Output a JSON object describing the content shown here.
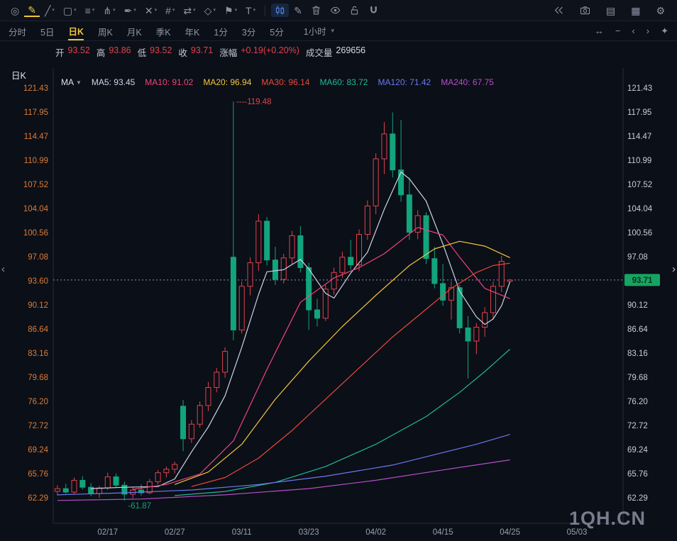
{
  "toolbar": {
    "left_tools": [
      {
        "name": "app-logo",
        "glyph": "◎"
      },
      {
        "name": "draw-pencil",
        "glyph": "✎",
        "active": "active-yellow"
      },
      {
        "name": "trend-line",
        "glyph": "╱",
        "caret": true
      },
      {
        "name": "shape-rect",
        "glyph": "▢",
        "caret": true
      },
      {
        "name": "horizontal-lines",
        "glyph": "≡",
        "caret": true
      },
      {
        "name": "pitchfork",
        "glyph": "⋔",
        "caret": true
      },
      {
        "name": "pen-tool",
        "glyph": "✒",
        "caret": true
      },
      {
        "name": "cross-line",
        "glyph": "✕",
        "caret": true
      },
      {
        "name": "gann-grid",
        "glyph": "#",
        "caret": true
      },
      {
        "name": "measure",
        "glyph": "⇄",
        "caret": true
      },
      {
        "name": "brush",
        "glyph": "◇",
        "caret": true
      },
      {
        "name": "flag-mark",
        "glyph": "⚑",
        "caret": true
      },
      {
        "name": "text-tool",
        "glyph": "T",
        "caret": true
      }
    ],
    "mid_tools": [
      {
        "name": "indicator-chart",
        "icon": "candles",
        "active": "active-blue"
      },
      {
        "name": "edit-drawing",
        "glyph": "✎"
      },
      {
        "name": "delete-drawing",
        "icon": "trash"
      },
      {
        "name": "visibility",
        "icon": "eye"
      },
      {
        "name": "unlock",
        "icon": "unlock"
      },
      {
        "name": "magnet-snap",
        "icon": "magnet"
      }
    ],
    "right_tools": [
      {
        "name": "replay-rewind",
        "icon": "rewind"
      },
      {
        "name": "screenshot-camera",
        "icon": "camera"
      },
      {
        "name": "layout-list",
        "glyph": "▤"
      },
      {
        "name": "layout-grid",
        "glyph": "▦"
      },
      {
        "name": "toolbar-settings",
        "glyph": "⚙"
      }
    ]
  },
  "timeframe_bar": {
    "tabs": [
      {
        "label": "分时"
      },
      {
        "label": "5日"
      },
      {
        "label": "日K",
        "active": true
      },
      {
        "label": "周K"
      },
      {
        "label": "月K"
      },
      {
        "label": "季K"
      },
      {
        "label": "年K"
      },
      {
        "label": "1分"
      },
      {
        "label": "3分"
      },
      {
        "label": "5分"
      }
    ],
    "dropdown_label": "1小时",
    "right_controls": [
      {
        "name": "fit-width",
        "glyph": "↔"
      },
      {
        "name": "zoom-out",
        "glyph": "−"
      },
      {
        "name": "pan-left",
        "glyph": "‹"
      },
      {
        "name": "pan-right",
        "glyph": "›"
      },
      {
        "name": "chart-tools",
        "glyph": "✦"
      }
    ]
  },
  "info_bar": {
    "items": [
      {
        "label": "开",
        "value": "93.52",
        "tone": "up"
      },
      {
        "label": "高",
        "value": "93.86",
        "tone": "up"
      },
      {
        "label": "低",
        "value": "93.52",
        "tone": "up"
      },
      {
        "label": "收",
        "value": "93.71",
        "tone": "up"
      },
      {
        "label": "涨幅",
        "value": "+0.19(+0.20%)",
        "tone": "up"
      },
      {
        "label": "成交量",
        "value": "269656",
        "tone": "plain"
      }
    ]
  },
  "chart": {
    "period_label": "日K",
    "legend_label": "MA"
  },
  "watermark": {
    "text": "1QH.CN"
  },
  "edges": {
    "left": "‹",
    "right": "›"
  },
  "colors": {
    "up": "#e0424d",
    "down": "#12a47d",
    "axis_left": "#dd7b36",
    "axis_right": "#c7cdd8",
    "x_label": "#99a1b2",
    "tag_bg": "#16a462",
    "tag_text": "#07331c",
    "dotted_line": "#8d96a8",
    "border": "#252c3a"
  },
  "chart_data": {
    "type": "candlestick",
    "title": "日K",
    "ylim": [
      58.6,
      124.3
    ],
    "slots": 68,
    "y_ticks": [
      "121.43",
      "117.95",
      "114.47",
      "110.99",
      "107.52",
      "104.04",
      "100.56",
      "97.08",
      "93.60",
      "90.12",
      "86.64",
      "83.16",
      "79.68",
      "76.20",
      "72.72",
      "69.24",
      "65.76",
      "62.29"
    ],
    "x_ticks": [
      {
        "i": 6,
        "label": "02/17"
      },
      {
        "i": 14,
        "label": "02/27"
      },
      {
        "i": 22,
        "label": "03/11"
      },
      {
        "i": 30,
        "label": "03/23"
      },
      {
        "i": 38,
        "label": "04/02"
      },
      {
        "i": 46,
        "label": "04/15"
      },
      {
        "i": 54,
        "label": "04/25"
      },
      {
        "i": 62,
        "label": "05/03"
      }
    ],
    "last_price": "93.71",
    "last_price_value": 93.71,
    "high_annotation": {
      "i": 21,
      "price": 119.48,
      "text": "----119.48"
    },
    "low_annotation": {
      "i": 8,
      "price": 61.87,
      "text": "-61.87"
    },
    "candles": [
      [
        63.2,
        64.1,
        62.6,
        63.6
      ],
      [
        63.6,
        64.3,
        62.9,
        63.1
      ],
      [
        63.1,
        65.2,
        62.8,
        64.8
      ],
      [
        64.8,
        65.4,
        63.5,
        63.8
      ],
      [
        63.8,
        64.4,
        62.5,
        62.9
      ],
      [
        62.9,
        64.0,
        62.3,
        63.7
      ],
      [
        63.7,
        65.9,
        63.4,
        65.3
      ],
      [
        65.3,
        65.8,
        63.8,
        64.1
      ],
      [
        64.1,
        64.6,
        61.87,
        62.8
      ],
      [
        62.8,
        63.8,
        62.2,
        63.4
      ],
      [
        63.4,
        64.2,
        62.6,
        63.0
      ],
      [
        63.0,
        65.0,
        62.8,
        64.6
      ],
      [
        64.6,
        66.3,
        64.2,
        65.9
      ],
      [
        65.9,
        66.8,
        65.2,
        66.4
      ],
      [
        66.4,
        67.5,
        65.8,
        67.1
      ],
      [
        75.5,
        76.4,
        69.0,
        70.8
      ],
      [
        70.8,
        73.5,
        70.2,
        72.9
      ],
      [
        72.9,
        76.2,
        72.4,
        75.6
      ],
      [
        75.6,
        79.0,
        74.8,
        78.2
      ],
      [
        78.2,
        81.0,
        77.5,
        80.4
      ],
      [
        80.4,
        84.0,
        79.6,
        83.4
      ],
      [
        97.0,
        119.48,
        85.0,
        86.5
      ],
      [
        86.5,
        93.5,
        86.0,
        92.8
      ],
      [
        92.8,
        97.0,
        91.5,
        96.2
      ],
      [
        96.2,
        103.2,
        95.0,
        102.2
      ],
      [
        102.2,
        102.8,
        95.8,
        96.6
      ],
      [
        96.6,
        98.5,
        93.0,
        93.8
      ],
      [
        93.8,
        97.5,
        93.2,
        96.9
      ],
      [
        96.9,
        100.8,
        96.0,
        100.1
      ],
      [
        100.1,
        101.5,
        94.8,
        95.5
      ],
      [
        95.5,
        96.2,
        86.5,
        89.4
      ],
      [
        89.4,
        91.0,
        87.0,
        88.2
      ],
      [
        88.2,
        93.0,
        87.8,
        92.4
      ],
      [
        92.4,
        95.5,
        91.6,
        94.8
      ],
      [
        94.8,
        97.8,
        94.0,
        97.0
      ],
      [
        97.0,
        99.5,
        95.2,
        95.9
      ],
      [
        95.9,
        101.0,
        95.0,
        100.3
      ],
      [
        100.3,
        105.2,
        99.5,
        104.4
      ],
      [
        104.4,
        112.0,
        103.2,
        111.2
      ],
      [
        111.2,
        116.5,
        109.0,
        114.8
      ],
      [
        114.8,
        117.9,
        108.5,
        109.6
      ],
      [
        109.6,
        116.8,
        105.0,
        106.0
      ],
      [
        106.0,
        108.5,
        99.5,
        100.6
      ],
      [
        100.6,
        103.8,
        99.6,
        103.0
      ],
      [
        103.0,
        103.5,
        96.0,
        96.8
      ],
      [
        96.8,
        98.5,
        92.5,
        93.2
      ],
      [
        93.2,
        96.0,
        90.0,
        90.8
      ],
      [
        90.8,
        93.5,
        88.0,
        92.6
      ],
      [
        92.6,
        93.0,
        86.0,
        86.8
      ],
      [
        86.8,
        88.5,
        79.5,
        84.9
      ],
      [
        84.9,
        87.5,
        83.0,
        86.9
      ],
      [
        86.9,
        89.8,
        85.5,
        89.0
      ],
      [
        89.0,
        93.5,
        88.0,
        92.8
      ],
      [
        92.8,
        97.2,
        92.0,
        96.4
      ],
      [
        93.52,
        93.86,
        93.52,
        93.71
      ]
    ],
    "ma_lines": [
      {
        "name": "MA5",
        "color": "#ccd5e6",
        "points": [
          [
            4,
            63.6
          ],
          [
            8,
            63.8
          ],
          [
            12,
            63.9
          ],
          [
            14,
            65.0
          ],
          [
            16,
            68.9
          ],
          [
            18,
            72.5
          ],
          [
            20,
            77.0
          ],
          [
            22,
            84.0
          ],
          [
            24,
            91.6
          ],
          [
            25,
            94.9
          ],
          [
            27,
            95.2
          ],
          [
            29,
            96.7
          ],
          [
            30,
            95.3
          ],
          [
            32,
            91.8
          ],
          [
            33,
            91.1
          ],
          [
            35,
            94.7
          ],
          [
            37,
            97.7
          ],
          [
            39,
            103.9
          ],
          [
            41,
            109.3
          ],
          [
            42,
            108.3
          ],
          [
            44,
            105.1
          ],
          [
            46,
            98.9
          ],
          [
            48,
            92.1
          ],
          [
            50,
            88.4
          ],
          [
            51,
            87.3
          ],
          [
            52,
            88.1
          ],
          [
            53,
            90.0
          ],
          [
            54,
            93.45
          ]
        ]
      },
      {
        "name": "MA10",
        "color": "#f0437f",
        "points": [
          [
            9,
            63.5
          ],
          [
            13,
            64.2
          ],
          [
            17,
            65.7
          ],
          [
            21,
            70.5
          ],
          [
            25,
            80.8
          ],
          [
            29,
            90.5
          ],
          [
            33,
            94.0
          ],
          [
            36,
            95.5
          ],
          [
            39,
            97.5
          ],
          [
            43,
            101.3
          ],
          [
            46,
            100.2
          ],
          [
            48,
            97.0
          ],
          [
            51,
            92.5
          ],
          [
            54,
            91.02
          ]
        ]
      },
      {
        "name": "MA20",
        "color": "#f2c53d",
        "points": [
          [
            14,
            64.2
          ],
          [
            18,
            66.0
          ],
          [
            22,
            70.0
          ],
          [
            26,
            76.5
          ],
          [
            30,
            82.0
          ],
          [
            34,
            87.0
          ],
          [
            38,
            91.5
          ],
          [
            42,
            95.8
          ],
          [
            45,
            98.2
          ],
          [
            48,
            99.3
          ],
          [
            51,
            98.6
          ],
          [
            54,
            96.94
          ]
        ]
      },
      {
        "name": "MA30",
        "color": "#e8493b",
        "points": [
          [
            16,
            63.9
          ],
          [
            20,
            65.2
          ],
          [
            24,
            68.0
          ],
          [
            28,
            72.0
          ],
          [
            32,
            76.5
          ],
          [
            36,
            81.0
          ],
          [
            40,
            85.5
          ],
          [
            44,
            89.5
          ],
          [
            47,
            92.5
          ],
          [
            50,
            94.8
          ],
          [
            52,
            95.8
          ],
          [
            54,
            96.14
          ]
        ]
      },
      {
        "name": "MA60",
        "color": "#1fb99a",
        "points": [
          [
            14,
            62.6
          ],
          [
            20,
            63.2
          ],
          [
            26,
            64.5
          ],
          [
            32,
            66.8
          ],
          [
            38,
            70.0
          ],
          [
            44,
            74.0
          ],
          [
            48,
            77.5
          ],
          [
            51,
            80.5
          ],
          [
            54,
            83.72
          ]
        ]
      },
      {
        "name": "MA120",
        "color": "#6b79ee",
        "points": [
          [
            0,
            62.7
          ],
          [
            8,
            63.0
          ],
          [
            16,
            63.4
          ],
          [
            24,
            64.2
          ],
          [
            32,
            65.4
          ],
          [
            40,
            67.0
          ],
          [
            46,
            68.8
          ],
          [
            50,
            70.0
          ],
          [
            54,
            71.42
          ]
        ]
      },
      {
        "name": "MA240",
        "color": "#b44fc8",
        "points": [
          [
            0,
            61.9
          ],
          [
            10,
            62.1
          ],
          [
            20,
            62.7
          ],
          [
            30,
            63.6
          ],
          [
            38,
            64.8
          ],
          [
            46,
            66.3
          ],
          [
            54,
            67.75
          ]
        ]
      }
    ],
    "legend": {
      "items": [
        {
          "name": "MA5",
          "value": "93.45",
          "color": "#ccd5e6"
        },
        {
          "name": "MA10",
          "value": "91.02",
          "color": "#f0437f"
        },
        {
          "name": "MA20",
          "value": "96.94",
          "color": "#f2c53d"
        },
        {
          "name": "MA30",
          "value": "96.14",
          "color": "#e8493b"
        },
        {
          "name": "MA60",
          "value": "83.72",
          "color": "#1fb99a"
        },
        {
          "name": "MA120",
          "value": "71.42",
          "color": "#6b79ee"
        },
        {
          "name": "MA240",
          "value": "67.75",
          "color": "#b44fc8"
        }
      ]
    }
  }
}
